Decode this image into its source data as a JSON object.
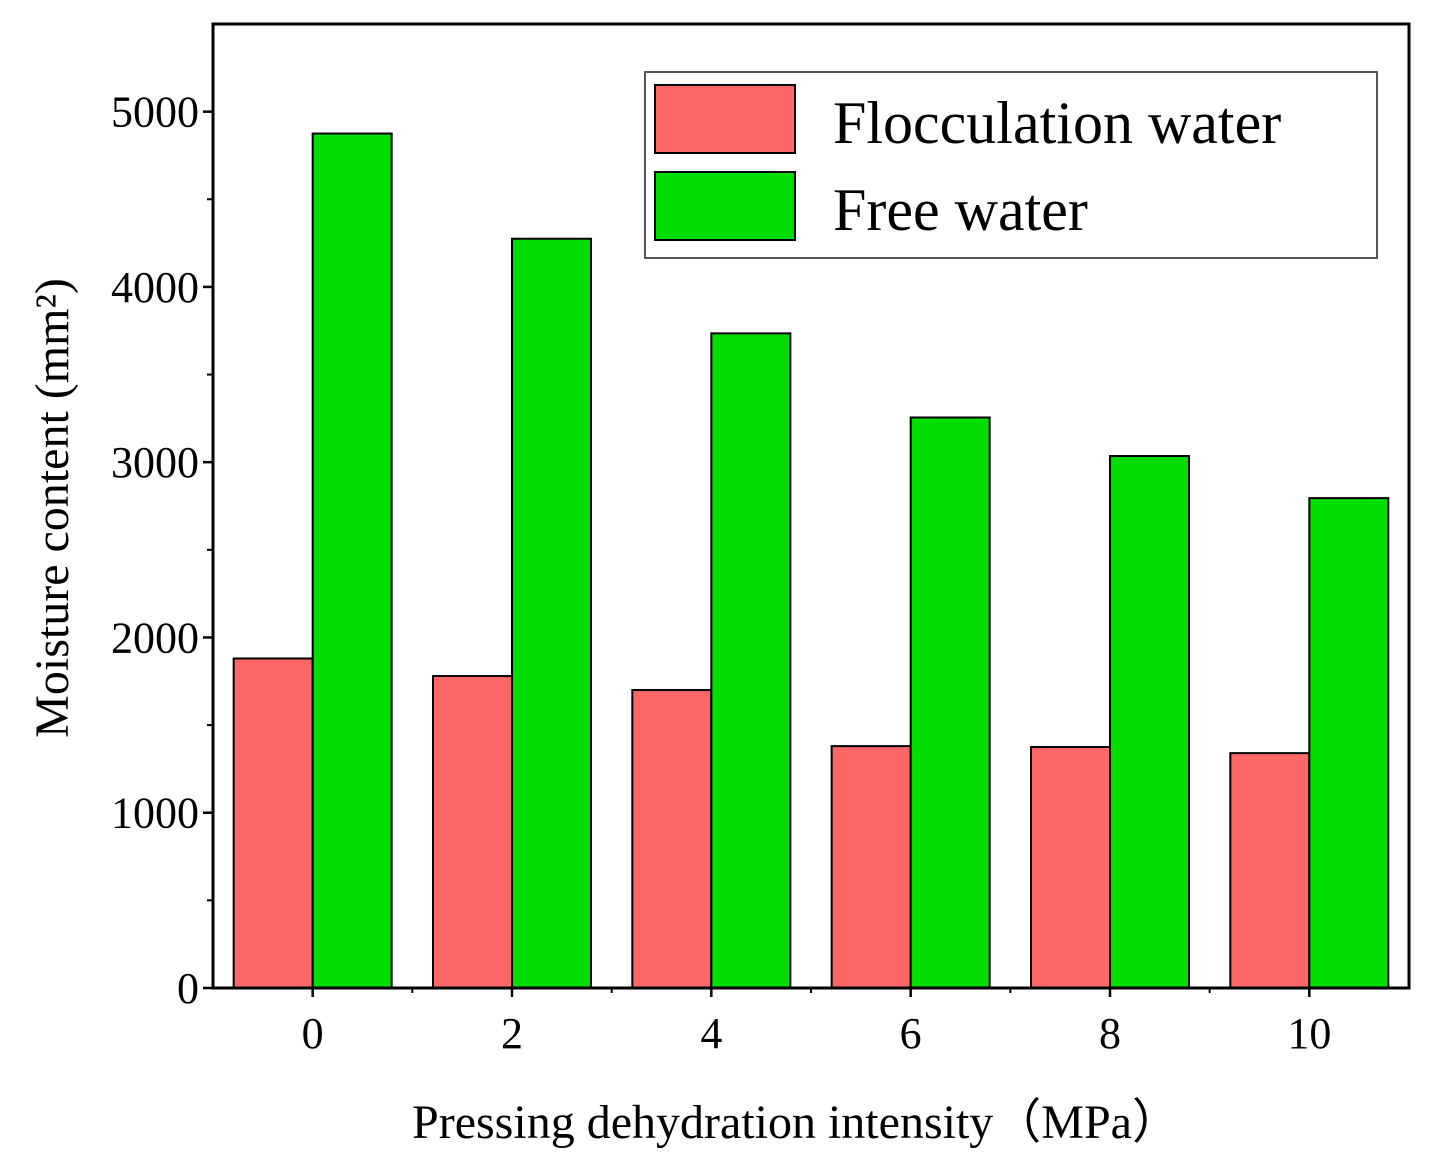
{
  "chart_data": {
    "type": "bar",
    "title": "",
    "xlabel": "Pressing dehydration intensity（MPa）",
    "ylabel": "Moisture content (mm²)",
    "categories": [
      "0",
      "2",
      "4",
      "6",
      "8",
      "10"
    ],
    "series": [
      {
        "name": "Flocculation water",
        "color": "#ff6666",
        "values": [
          1880,
          1780,
          1700,
          1380,
          1375,
          1340
        ]
      },
      {
        "name": "Free water",
        "color": "#00dd00",
        "values": [
          4875,
          4275,
          3735,
          3255,
          3035,
          2795
        ]
      }
    ],
    "ylim": [
      0,
      5500
    ],
    "yticks": [
      0,
      1000,
      2000,
      3000,
      4000,
      5000
    ],
    "grid": false,
    "legend_position": "top-right"
  }
}
